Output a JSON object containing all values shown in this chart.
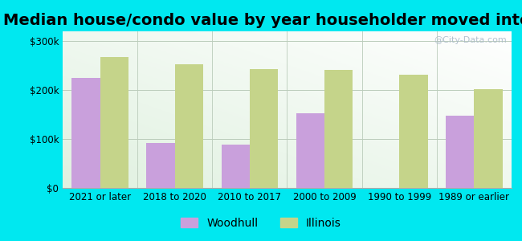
{
  "title": "Median house/condo value by year householder moved into unit",
  "categories": [
    "2021 or later",
    "2018 to 2020",
    "2010 to 2017",
    "2000 to 2009",
    "1990 to 1999",
    "1989 or earlier"
  ],
  "woodhull_values": [
    225000,
    92000,
    89000,
    152000,
    0,
    148000
  ],
  "illinois_values": [
    268000,
    252000,
    243000,
    242000,
    232000,
    202000
  ],
  "woodhull_color": "#c9a0dc",
  "illinois_color": "#c5d48a",
  "background_outer": "#00e8f0",
  "ylim": [
    0,
    320000
  ],
  "yticks": [
    0,
    100000,
    200000,
    300000
  ],
  "ytick_labels": [
    "$0",
    "$100k",
    "$200k",
    "$300k"
  ],
  "watermark": "@City-Data.com",
  "legend_woodhull": "Woodhull",
  "legend_illinois": "Illinois",
  "title_fontsize": 14,
  "tick_fontsize": 8.5,
  "legend_fontsize": 10
}
